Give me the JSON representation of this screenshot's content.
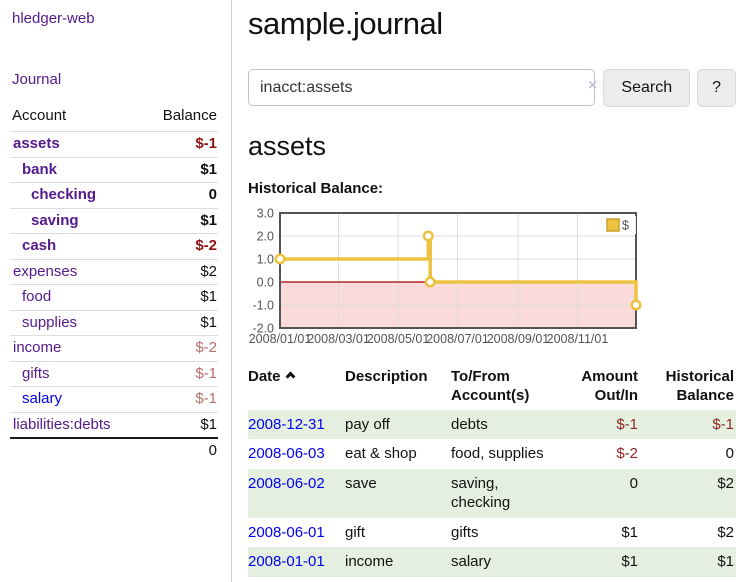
{
  "app_title": "hledger-web",
  "sidebar": {
    "journal_link": "Journal",
    "account_header": "Account",
    "balance_header": "Balance",
    "rows": [
      {
        "name": "assets",
        "balance": "$-1",
        "indent": 1,
        "bold": true,
        "neg": "strong",
        "link": "purple"
      },
      {
        "name": "bank",
        "balance": "$1",
        "indent": 2,
        "bold": true,
        "neg": null,
        "link": "purple"
      },
      {
        "name": "checking",
        "balance": "0",
        "indent": 3,
        "bold": true,
        "neg": null,
        "link": "purple"
      },
      {
        "name": "saving",
        "balance": "$1",
        "indent": 3,
        "bold": true,
        "neg": null,
        "link": "purple"
      },
      {
        "name": "cash",
        "balance": "$-2",
        "indent": 2,
        "bold": true,
        "neg": "strong",
        "link": "purple"
      },
      {
        "name": "expenses",
        "balance": "$2",
        "indent": 1,
        "bold": false,
        "neg": null,
        "link": "purple"
      },
      {
        "name": "food",
        "balance": "$1",
        "indent": 2,
        "bold": false,
        "neg": null,
        "link": "purple"
      },
      {
        "name": "supplies",
        "balance": "$1",
        "indent": 2,
        "bold": false,
        "neg": null,
        "link": "purple"
      },
      {
        "name": "income",
        "balance": "$-2",
        "indent": 1,
        "bold": false,
        "neg": "muted",
        "link": "purple"
      },
      {
        "name": "gifts",
        "balance": "$-1",
        "indent": 2,
        "bold": false,
        "neg": "muted",
        "link": "purple"
      },
      {
        "name": "salary",
        "balance": "$-1",
        "indent": 2,
        "bold": false,
        "neg": "muted",
        "link": "blue"
      },
      {
        "name": "liabilities:debts",
        "balance": "$1",
        "indent": 1,
        "bold": false,
        "neg": null,
        "link": "purple"
      }
    ],
    "total": "0"
  },
  "main": {
    "title": "sample.journal",
    "search": {
      "value": "inacct:assets",
      "clear_label": "×",
      "search_button": "Search",
      "help_button": "?"
    },
    "account_title": "assets",
    "chart_label": "Historical Balance:"
  },
  "chart_data": {
    "type": "line",
    "step": true,
    "title": "Historical Balance",
    "x_range": [
      "2008-01-01",
      "2008-12-31"
    ],
    "ylim": [
      -2,
      3
    ],
    "y_ticks": [
      "3.0",
      "2.0",
      "1.0",
      "0.0",
      "-1.0",
      "-2.0"
    ],
    "x_ticks": [
      "2008/01/01",
      "2008/03/01",
      "2008/05/01",
      "2008/07/01",
      "2008/09/01",
      "2008/11/01"
    ],
    "series": [
      {
        "name": "$",
        "color": "#edc240",
        "points": [
          [
            "2008-01-01",
            1
          ],
          [
            "2008-06-01",
            2
          ],
          [
            "2008-06-03",
            0
          ],
          [
            "2008-12-31",
            -1
          ]
        ]
      }
    ],
    "legend": {
      "label": "$",
      "position": "top-right"
    },
    "grid": true,
    "negative_region_color": "#fbdada",
    "zero_line_color": "#a00000"
  },
  "register": {
    "headers": {
      "date": "Date",
      "description": "Description",
      "accounts": "To/From Account(s)",
      "amount": "Amount Out/In",
      "balance": "Historical Balance"
    },
    "rows": [
      {
        "date": "2008-12-31",
        "description": "pay off",
        "accounts": "debts",
        "amount": "$-1",
        "balance": "$-1",
        "amount_neg": true,
        "balance_neg": true
      },
      {
        "date": "2008-06-03",
        "description": "eat & shop",
        "accounts": "food, supplies",
        "amount": "$-2",
        "balance": "0",
        "amount_neg": true,
        "balance_neg": false
      },
      {
        "date": "2008-06-02",
        "description": "save",
        "accounts": "saving, checking",
        "amount": "0",
        "balance": "$2",
        "amount_neg": false,
        "balance_neg": false
      },
      {
        "date": "2008-06-01",
        "description": "gift",
        "accounts": "gifts",
        "amount": "$1",
        "balance": "$2",
        "amount_neg": false,
        "balance_neg": false
      },
      {
        "date": "2008-01-01",
        "description": "income",
        "accounts": "salary",
        "amount": "$1",
        "balance": "$1",
        "amount_neg": false,
        "balance_neg": false
      }
    ]
  },
  "colors": {
    "link_purple": "#551a8b",
    "link_blue": "#0000ee",
    "negative_strong": "#8e1212",
    "negative_muted": "#b4706b",
    "table_negative": "#8e2626",
    "row_stripe_green": "#e4efe0",
    "series_gold": "#edc240"
  }
}
